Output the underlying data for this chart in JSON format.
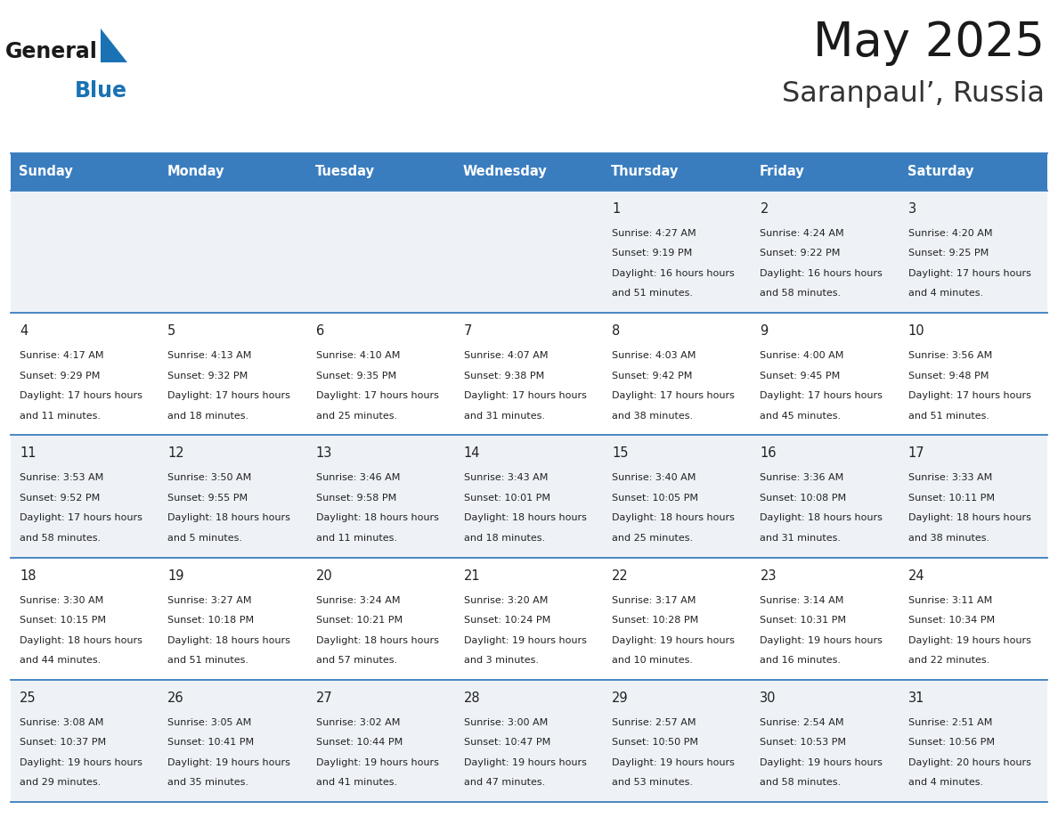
{
  "title": "May 2025",
  "subtitle": "Saranpaul’, Russia",
  "days_of_week": [
    "Sunday",
    "Monday",
    "Tuesday",
    "Wednesday",
    "Thursday",
    "Friday",
    "Saturday"
  ],
  "header_bg": "#3a7dbf",
  "header_text": "#ffffff",
  "row_bg_odd": "#eef2f7",
  "row_bg_even": "#ffffff",
  "cell_text_color": "#222222",
  "separator_color": "#3a7dbf",
  "calendar": [
    [
      {
        "day": "",
        "sunrise": "",
        "sunset": "",
        "daylight": ""
      },
      {
        "day": "",
        "sunrise": "",
        "sunset": "",
        "daylight": ""
      },
      {
        "day": "",
        "sunrise": "",
        "sunset": "",
        "daylight": ""
      },
      {
        "day": "",
        "sunrise": "",
        "sunset": "",
        "daylight": ""
      },
      {
        "day": "1",
        "sunrise": "4:27 AM",
        "sunset": "9:19 PM",
        "daylight": "16 hours and 51 minutes."
      },
      {
        "day": "2",
        "sunrise": "4:24 AM",
        "sunset": "9:22 PM",
        "daylight": "16 hours and 58 minutes."
      },
      {
        "day": "3",
        "sunrise": "4:20 AM",
        "sunset": "9:25 PM",
        "daylight": "17 hours and 4 minutes."
      }
    ],
    [
      {
        "day": "4",
        "sunrise": "4:17 AM",
        "sunset": "9:29 PM",
        "daylight": "17 hours and 11 minutes."
      },
      {
        "day": "5",
        "sunrise": "4:13 AM",
        "sunset": "9:32 PM",
        "daylight": "17 hours and 18 minutes."
      },
      {
        "day": "6",
        "sunrise": "4:10 AM",
        "sunset": "9:35 PM",
        "daylight": "17 hours and 25 minutes."
      },
      {
        "day": "7",
        "sunrise": "4:07 AM",
        "sunset": "9:38 PM",
        "daylight": "17 hours and 31 minutes."
      },
      {
        "day": "8",
        "sunrise": "4:03 AM",
        "sunset": "9:42 PM",
        "daylight": "17 hours and 38 minutes."
      },
      {
        "day": "9",
        "sunrise": "4:00 AM",
        "sunset": "9:45 PM",
        "daylight": "17 hours and 45 minutes."
      },
      {
        "day": "10",
        "sunrise": "3:56 AM",
        "sunset": "9:48 PM",
        "daylight": "17 hours and 51 minutes."
      }
    ],
    [
      {
        "day": "11",
        "sunrise": "3:53 AM",
        "sunset": "9:52 PM",
        "daylight": "17 hours and 58 minutes."
      },
      {
        "day": "12",
        "sunrise": "3:50 AM",
        "sunset": "9:55 PM",
        "daylight": "18 hours and 5 minutes."
      },
      {
        "day": "13",
        "sunrise": "3:46 AM",
        "sunset": "9:58 PM",
        "daylight": "18 hours and 11 minutes."
      },
      {
        "day": "14",
        "sunrise": "3:43 AM",
        "sunset": "10:01 PM",
        "daylight": "18 hours and 18 minutes."
      },
      {
        "day": "15",
        "sunrise": "3:40 AM",
        "sunset": "10:05 PM",
        "daylight": "18 hours and 25 minutes."
      },
      {
        "day": "16",
        "sunrise": "3:36 AM",
        "sunset": "10:08 PM",
        "daylight": "18 hours and 31 minutes."
      },
      {
        "day": "17",
        "sunrise": "3:33 AM",
        "sunset": "10:11 PM",
        "daylight": "18 hours and 38 minutes."
      }
    ],
    [
      {
        "day": "18",
        "sunrise": "3:30 AM",
        "sunset": "10:15 PM",
        "daylight": "18 hours and 44 minutes."
      },
      {
        "day": "19",
        "sunrise": "3:27 AM",
        "sunset": "10:18 PM",
        "daylight": "18 hours and 51 minutes."
      },
      {
        "day": "20",
        "sunrise": "3:24 AM",
        "sunset": "10:21 PM",
        "daylight": "18 hours and 57 minutes."
      },
      {
        "day": "21",
        "sunrise": "3:20 AM",
        "sunset": "10:24 PM",
        "daylight": "19 hours and 3 minutes."
      },
      {
        "day": "22",
        "sunrise": "3:17 AM",
        "sunset": "10:28 PM",
        "daylight": "19 hours and 10 minutes."
      },
      {
        "day": "23",
        "sunrise": "3:14 AM",
        "sunset": "10:31 PM",
        "daylight": "19 hours and 16 minutes."
      },
      {
        "day": "24",
        "sunrise": "3:11 AM",
        "sunset": "10:34 PM",
        "daylight": "19 hours and 22 minutes."
      }
    ],
    [
      {
        "day": "25",
        "sunrise": "3:08 AM",
        "sunset": "10:37 PM",
        "daylight": "19 hours and 29 minutes."
      },
      {
        "day": "26",
        "sunrise": "3:05 AM",
        "sunset": "10:41 PM",
        "daylight": "19 hours and 35 minutes."
      },
      {
        "day": "27",
        "sunrise": "3:02 AM",
        "sunset": "10:44 PM",
        "daylight": "19 hours and 41 minutes."
      },
      {
        "day": "28",
        "sunrise": "3:00 AM",
        "sunset": "10:47 PM",
        "daylight": "19 hours and 47 minutes."
      },
      {
        "day": "29",
        "sunrise": "2:57 AM",
        "sunset": "10:50 PM",
        "daylight": "19 hours and 53 minutes."
      },
      {
        "day": "30",
        "sunrise": "2:54 AM",
        "sunset": "10:53 PM",
        "daylight": "19 hours and 58 minutes."
      },
      {
        "day": "31",
        "sunrise": "2:51 AM",
        "sunset": "10:56 PM",
        "daylight": "20 hours and 4 minutes."
      }
    ]
  ],
  "logo_general_color": "#1a1a1a",
  "logo_blue_color": "#1a72b5",
  "logo_triangle_color": "#1a72b5"
}
